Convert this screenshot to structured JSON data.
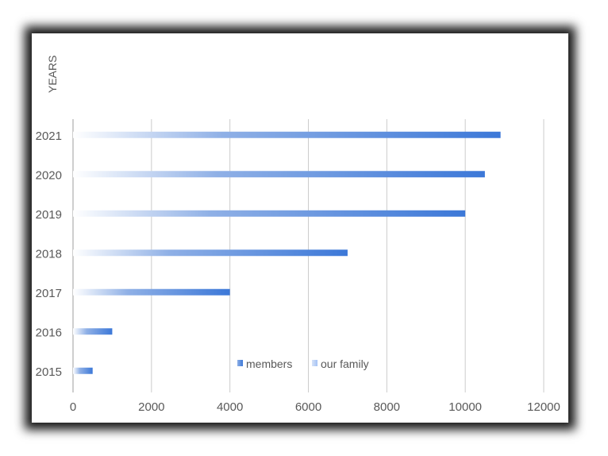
{
  "chart_data": {
    "type": "bar",
    "orientation": "horizontal",
    "ylabel": "YEARS",
    "xlabel": "",
    "categories": [
      "2015",
      "2016",
      "2017",
      "2018",
      "2019",
      "2020",
      "2021"
    ],
    "series": [
      {
        "name": "members",
        "color": "#3c78d8",
        "values": [
          500,
          1000,
          4000,
          7000,
          10000,
          10500,
          10900
        ]
      },
      {
        "name": "our family",
        "color": "#a4c2f4",
        "values": [
          0,
          0,
          0,
          0,
          0,
          0,
          0
        ]
      }
    ],
    "xlim": [
      0,
      12000
    ],
    "xticks": [
      "0",
      "2000",
      "4000",
      "6000",
      "8000",
      "10000",
      "12000"
    ],
    "grid": true,
    "legend_position": "inside-bottom"
  }
}
